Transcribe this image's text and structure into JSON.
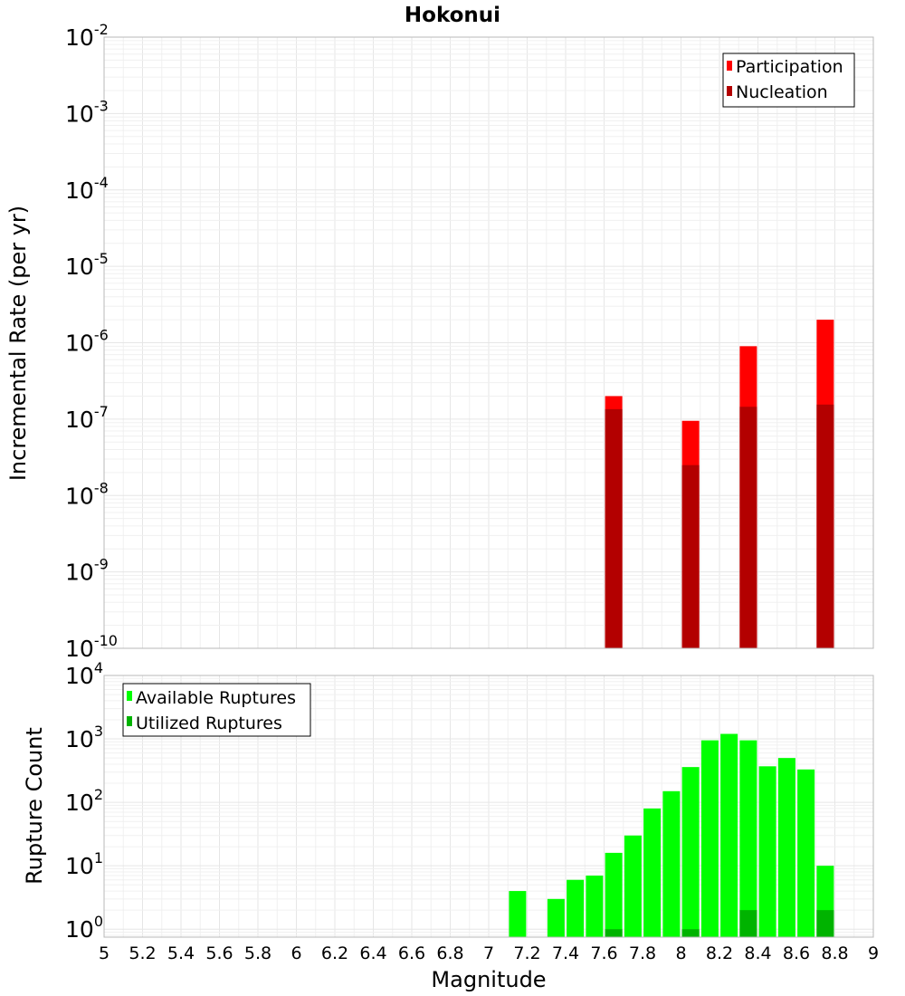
{
  "chart_title": "Hokonui",
  "shared_xlabel": "Magnitude",
  "colors": {
    "participation": "#ff0000",
    "nucleation": "#b30000",
    "available": "#00ff00",
    "utilized": "#00b300"
  },
  "chart_data": [
    {
      "type": "bar",
      "title": "Hokonui",
      "xlabel": "Magnitude",
      "ylabel": "Incremental Rate (per yr)",
      "xlim": [
        5,
        9
      ],
      "ylim": [
        1e-10,
        0.01
      ],
      "yscale": "log",
      "grid": true,
      "legend_position": "top-right",
      "x_ticks": [
        "5",
        "5.2",
        "5.4",
        "5.6",
        "5.8",
        "6",
        "6.2",
        "6.4",
        "6.6",
        "6.8",
        "7",
        "7.2",
        "7.4",
        "7.6",
        "7.8",
        "8",
        "8.2",
        "8.4",
        "8.6",
        "8.8",
        "9"
      ],
      "y_ticks": [
        {
          "base": "10",
          "exp": "-2"
        },
        {
          "base": "10",
          "exp": "-3"
        },
        {
          "base": "10",
          "exp": "-4"
        },
        {
          "base": "10",
          "exp": "-5"
        },
        {
          "base": "10",
          "exp": "-6"
        },
        {
          "base": "10",
          "exp": "-7"
        },
        {
          "base": "10",
          "exp": "-8"
        },
        {
          "base": "10",
          "exp": "-9"
        },
        {
          "base": "10",
          "exp": "-10"
        }
      ],
      "x": [
        7.65,
        8.05,
        8.35,
        8.75
      ],
      "series": [
        {
          "name": "Participation",
          "color": "#ff0000",
          "values": [
            2e-07,
            9.5e-08,
            9e-07,
            2e-06
          ]
        },
        {
          "name": "Nucleation",
          "color": "#b30000",
          "values": [
            1.35e-07,
            2.5e-08,
            1.45e-07,
            1.55e-07
          ]
        }
      ]
    },
    {
      "type": "bar",
      "xlabel": "Magnitude",
      "ylabel": "Rupture Count",
      "xlim": [
        5,
        9
      ],
      "ylim": [
        0.75,
        10000
      ],
      "yscale": "log",
      "grid": true,
      "legend_position": "top-left",
      "x_ticks": [
        "5",
        "5.2",
        "5.4",
        "5.6",
        "5.8",
        "6",
        "6.2",
        "6.4",
        "6.6",
        "6.8",
        "7",
        "7.2",
        "7.4",
        "7.6",
        "7.8",
        "8",
        "8.2",
        "8.4",
        "8.6",
        "8.8",
        "9"
      ],
      "y_ticks": [
        {
          "base": "10",
          "exp": "4"
        },
        {
          "base": "10",
          "exp": "3"
        },
        {
          "base": "10",
          "exp": "2"
        },
        {
          "base": "10",
          "exp": "1"
        },
        {
          "base": "10",
          "exp": "0"
        }
      ],
      "x": [
        7.15,
        7.35,
        7.45,
        7.55,
        7.65,
        7.75,
        7.85,
        7.95,
        8.05,
        8.15,
        8.25,
        8.35,
        8.45,
        8.55,
        8.65,
        8.75
      ],
      "series": [
        {
          "name": "Available Ruptures",
          "color": "#00ff00",
          "values": [
            4,
            3,
            6,
            7,
            16,
            30,
            80,
            150,
            360,
            950,
            1200,
            950,
            370,
            500,
            330,
            10
          ]
        },
        {
          "name": "Utilized Ruptures",
          "color": "#00b300",
          "values": [
            0,
            0,
            0,
            0,
            1,
            0,
            0,
            0,
            1,
            0,
            0,
            2,
            0,
            0,
            0,
            2
          ]
        }
      ]
    }
  ]
}
